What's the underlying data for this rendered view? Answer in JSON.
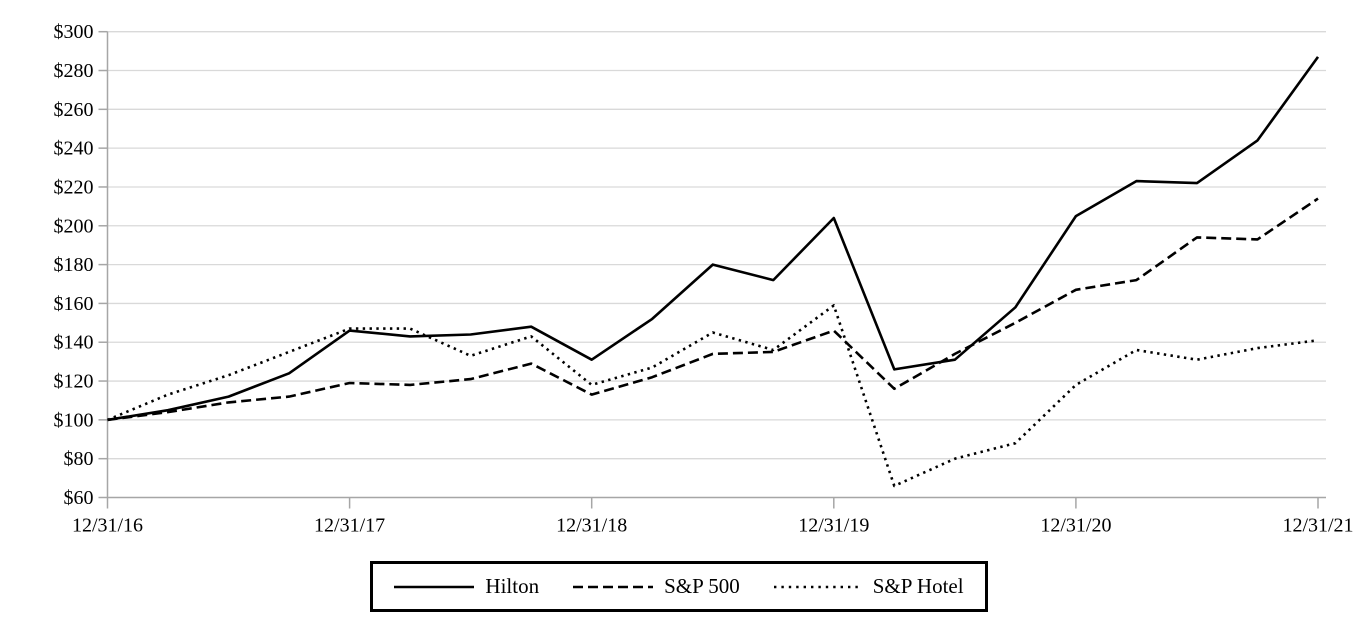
{
  "chart_data": {
    "type": "line",
    "title": "",
    "categories": [
      "12/31/16",
      "3/31/17",
      "6/30/17",
      "9/30/17",
      "12/31/17",
      "3/31/18",
      "6/30/18",
      "9/30/18",
      "12/31/18",
      "3/31/19",
      "6/30/19",
      "9/30/19",
      "12/31/19",
      "3/31/20",
      "6/30/20",
      "9/30/20",
      "12/31/20",
      "3/31/21",
      "6/30/21",
      "9/30/21",
      "12/31/21"
    ],
    "x_tick_indices": [
      0,
      4,
      8,
      12,
      16,
      20
    ],
    "x_tick_labels": [
      "12/31/16",
      "12/31/17",
      "12/31/18",
      "12/31/19",
      "12/31/20",
      "12/31/21"
    ],
    "series": [
      {
        "name": "Hilton",
        "style": "solid",
        "values": [
          100,
          105,
          112,
          124,
          146,
          143,
          144,
          148,
          131,
          152,
          180,
          172,
          204,
          126,
          131,
          158,
          205,
          223,
          222,
          244,
          287
        ]
      },
      {
        "name": "S&P 500",
        "style": "dashed",
        "values": [
          100,
          104,
          109,
          112,
          119,
          118,
          121,
          129,
          113,
          122,
          134,
          135,
          146,
          116,
          134,
          150,
          167,
          172,
          194,
          193,
          214
        ]
      },
      {
        "name": "S&P Hotel",
        "style": "dotted",
        "values": [
          100,
          113,
          123,
          135,
          147,
          147,
          133,
          143,
          118,
          127,
          145,
          136,
          159,
          66,
          80,
          88,
          118,
          136,
          131,
          137,
          141
        ]
      }
    ],
    "ylim": [
      60,
      300
    ],
    "ytick_step": 20,
    "ytick_labels": [
      "$300",
      "$280",
      "$260",
      "$240",
      "$220",
      "$200",
      "$180",
      "$160",
      "$140",
      "$120",
      "$100",
      "$80",
      "$60"
    ],
    "grid": true,
    "legend_position": "bottom-center",
    "colors": {
      "line": "#000000",
      "axis": "#a6a6a6",
      "gridline": "#d9d9d9",
      "text": "#000000",
      "background": "#ffffff"
    }
  }
}
